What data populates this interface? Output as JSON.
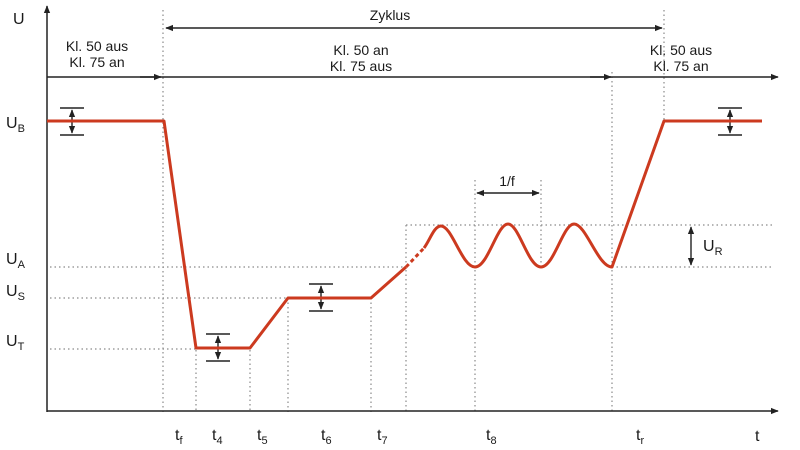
{
  "y_axis_label": "U",
  "x_axis_label": "t",
  "voltage_levels": [
    {
      "main": "U",
      "sub": "B"
    },
    {
      "main": "U",
      "sub": "A"
    },
    {
      "main": "U",
      "sub": "S"
    },
    {
      "main": "U",
      "sub": "T"
    }
  ],
  "time_labels": [
    {
      "main": "t",
      "sub": "f"
    },
    {
      "main": "t",
      "sub": "4"
    },
    {
      "main": "t",
      "sub": "5"
    },
    {
      "main": "t",
      "sub": "6"
    },
    {
      "main": "t",
      "sub": "7"
    },
    {
      "main": "t",
      "sub": "8"
    },
    {
      "main": "t",
      "sub": "r"
    }
  ],
  "cycle_label": "Zyklus",
  "frequency_label": "1/f",
  "ripple_label": {
    "main": "U",
    "sub": "R"
  },
  "phases": [
    {
      "line1": "Kl. 50 aus",
      "line2": "Kl. 75 an"
    },
    {
      "line1": "Kl. 50 an",
      "line2": "Kl. 75 aus"
    },
    {
      "line1": "Kl. 50 aus",
      "line2": "Kl. 75 an"
    }
  ],
  "colors": {
    "curve": "#cc3a1f",
    "axis": "#222222",
    "guide": "#8a8a8a"
  }
}
